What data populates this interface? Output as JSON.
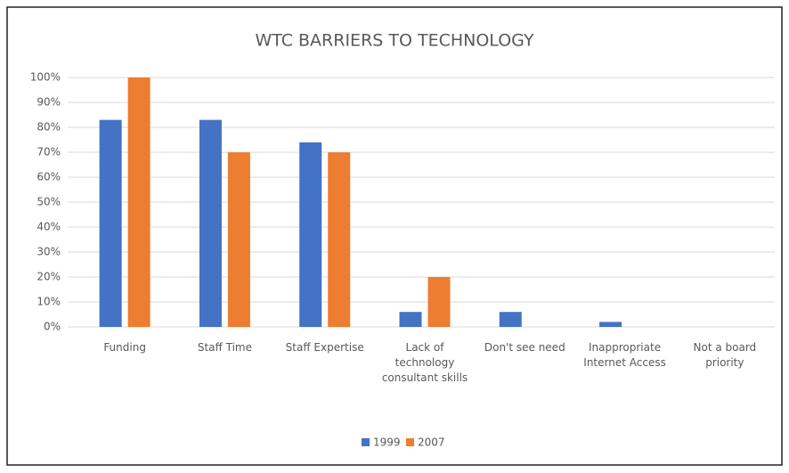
{
  "chart_data": {
    "type": "bar",
    "title": "WTC BARRIERS TO TECHNOLOGY",
    "categories": [
      "Funding",
      "Staff Time",
      "Staff Expertise",
      "Lack of technology consultant skills",
      "Don't see need",
      "Inappropriate Internet Access",
      "Not a board priority"
    ],
    "series": [
      {
        "name": "1999",
        "color": "#4472c4",
        "values": [
          83,
          83,
          74,
          6,
          6,
          2,
          0
        ]
      },
      {
        "name": "2007",
        "color": "#ed7d31",
        "values": [
          100,
          70,
          70,
          20,
          0,
          0,
          0
        ]
      }
    ],
    "ylim": [
      0,
      100
    ],
    "yticks": [
      {
        "value": 0,
        "label": "0%"
      },
      {
        "value": 10,
        "label": "10%"
      },
      {
        "value": 20,
        "label": "20%"
      },
      {
        "value": 30,
        "label": "30%"
      },
      {
        "value": 40,
        "label": "40%"
      },
      {
        "value": 50,
        "label": "50%"
      },
      {
        "value": 60,
        "label": "60%"
      },
      {
        "value": 70,
        "label": "70%"
      },
      {
        "value": 80,
        "label": "80%"
      },
      {
        "value": 90,
        "label": "90%"
      },
      {
        "value": 100,
        "label": "100%"
      }
    ],
    "grid": true,
    "legend": "bottom"
  }
}
